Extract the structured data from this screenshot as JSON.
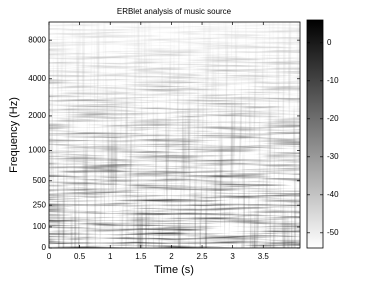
{
  "chart_data": {
    "type": "spectrogram",
    "title": "ERBlet analysis of music source",
    "xlabel": "Time (s)",
    "ylabel": "Frequency (Hz)",
    "xlim": [
      0,
      4.1
    ],
    "xticks": [
      0,
      0.5,
      1,
      1.5,
      2,
      2.5,
      3,
      3.5
    ],
    "yscale": "erb",
    "ylim": [
      0,
      11025
    ],
    "yticks": [
      0,
      100,
      250,
      500,
      1000,
      2000,
      4000,
      8000
    ],
    "colorbar": {
      "clim": [
        -54,
        6
      ],
      "ticks": [
        -50,
        -40,
        -30,
        -20,
        -10,
        0
      ],
      "colors": [
        "#ffffff",
        "#000000"
      ]
    }
  }
}
